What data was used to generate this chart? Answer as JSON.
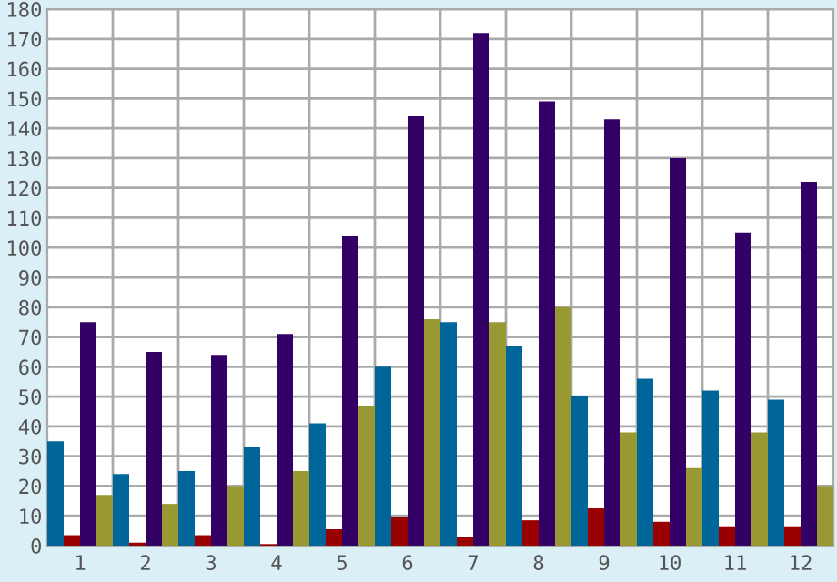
{
  "chart_data": {
    "type": "bar",
    "categories": [
      "1",
      "2",
      "3",
      "4",
      "5",
      "6",
      "7",
      "8",
      "9",
      "10",
      "11",
      "12"
    ],
    "series": [
      {
        "color": "#006699",
        "values": [
          35,
          24,
          25,
          33,
          41,
          60,
          75,
          67,
          50,
          56,
          52,
          49
        ]
      },
      {
        "color": "#990000",
        "values": [
          3.5,
          1,
          3.5,
          0.5,
          5.5,
          9.5,
          3,
          8.5,
          12.5,
          8,
          6.5,
          6.5
        ]
      },
      {
        "color": "#330066",
        "values": [
          75,
          65,
          64,
          71,
          104,
          144,
          172,
          149,
          143,
          130,
          105,
          122
        ]
      },
      {
        "color": "#999933",
        "values": [
          17,
          14,
          20,
          25,
          47,
          76,
          75,
          80,
          38,
          26,
          38,
          20
        ]
      }
    ],
    "ylim": [
      0,
      180
    ],
    "yticks": [
      0,
      10,
      20,
      30,
      40,
      50,
      60,
      70,
      80,
      90,
      100,
      110,
      120,
      130,
      140,
      150,
      160,
      170,
      180
    ],
    "grid": true
  }
}
